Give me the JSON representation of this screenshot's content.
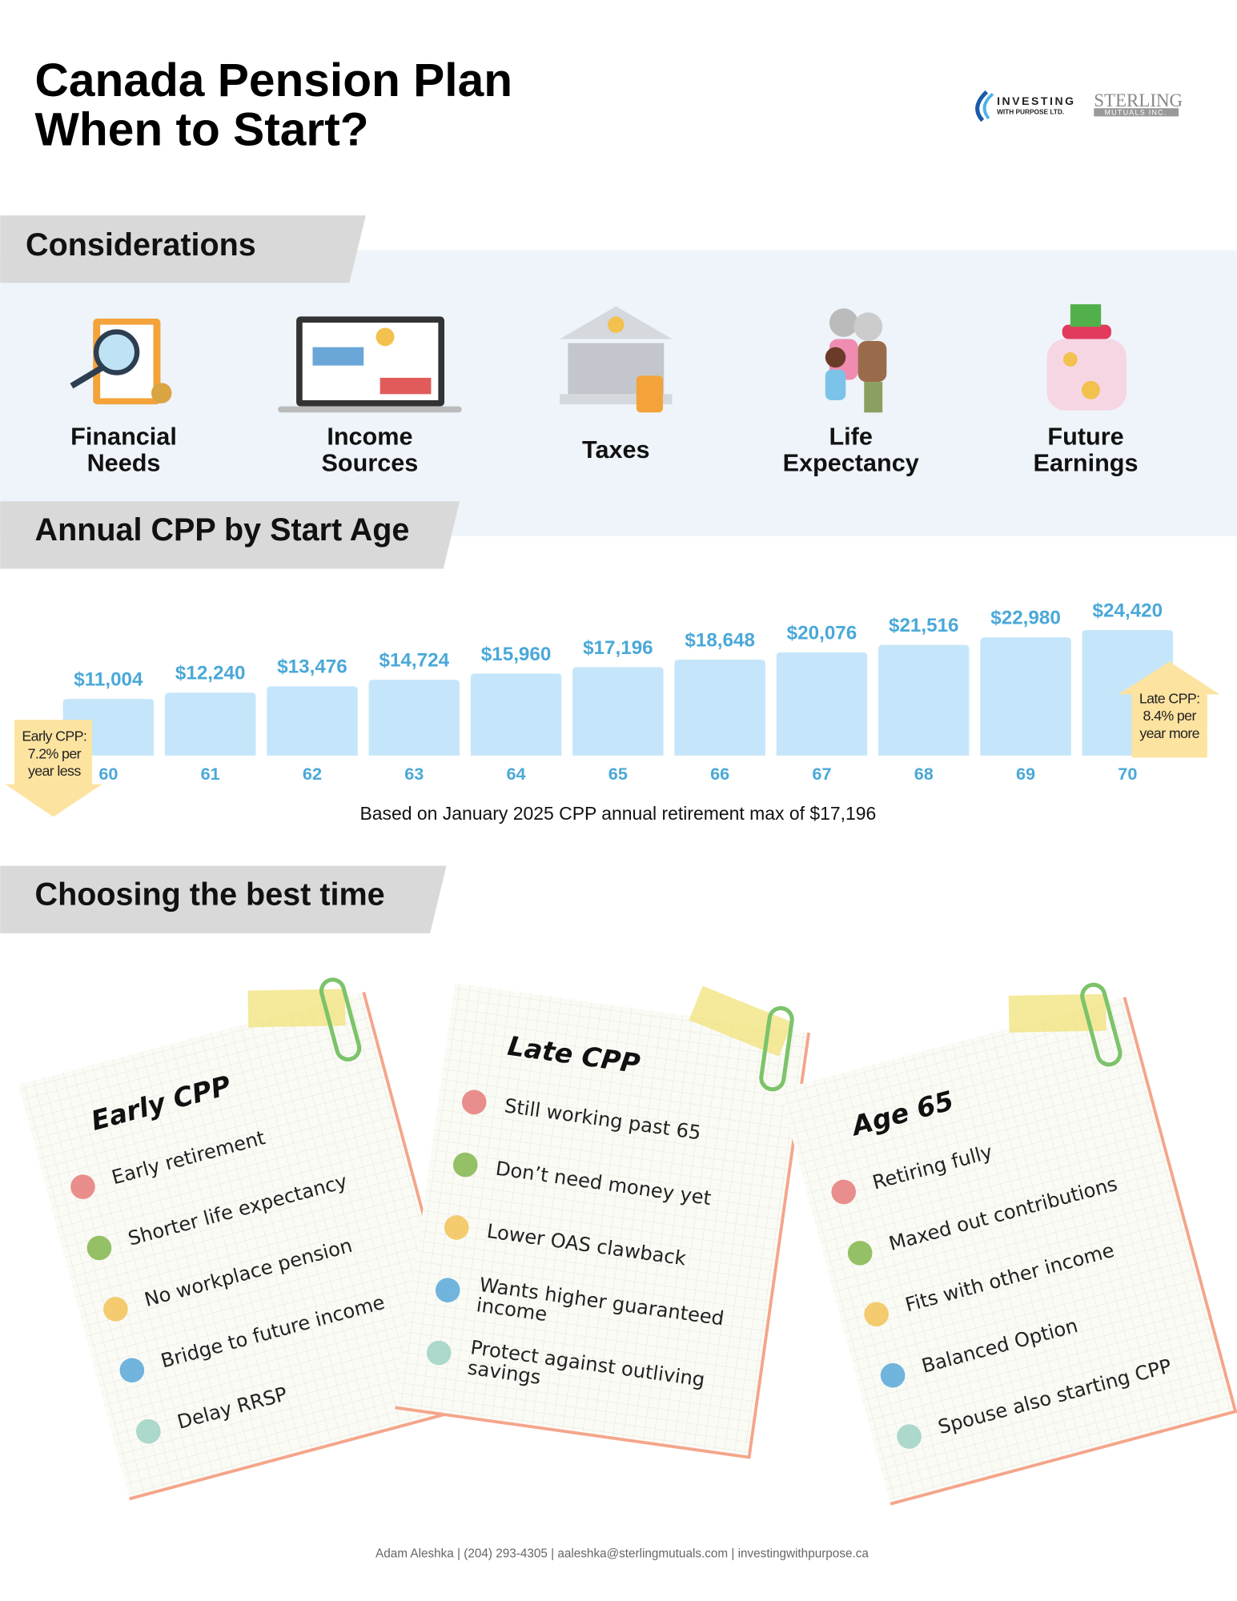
{
  "header": {
    "title_lines": [
      "Canada Pension Plan",
      "When to Start?"
    ],
    "logos": [
      "INVESTING",
      "WITH PURPOSE LTD.",
      "STERLING",
      "MUTUALS INC."
    ]
  },
  "sections": [
    "Considerations",
    "Annual CPP by Start Age",
    "Choosing the best time"
  ],
  "considerations": [
    [
      "Financial",
      "Needs"
    ],
    [
      "Income",
      "Sources"
    ],
    [
      "Taxes"
    ],
    [
      "Life",
      "Expectancy"
    ],
    [
      "Future",
      "Earnings"
    ]
  ],
  "chart_data": {
    "type": "bar",
    "categories": [
      "60",
      "61",
      "62",
      "63",
      "64",
      "65",
      "66",
      "67",
      "68",
      "69",
      "70"
    ],
    "values": [
      11004,
      12240,
      13476,
      14724,
      15960,
      17196,
      18648,
      20076,
      21516,
      22980,
      24420
    ],
    "value_labels": [
      "$11,004",
      "$12,240",
      "$13,476",
      "$14,724",
      "$15,960",
      "$17,196",
      "$18,648",
      "$20,076",
      "$21,516",
      "$22,980",
      "$24,420"
    ],
    "color": "#c5e6fa",
    "note": "Based on January 2025 CPP annual retirement max of $17,196",
    "annotations": [
      [
        "Early CPP:",
        "7.2% per",
        "year less"
      ],
      [
        "Late CPP:",
        "8.4% per",
        "year more"
      ]
    ]
  },
  "cards": [
    {
      "title": "Early CPP",
      "items": [
        [
          "Early retirement"
        ],
        [
          "Shorter life expectancy"
        ],
        [
          "No workplace pension"
        ],
        [
          "Bridge to future income"
        ],
        [
          "Delay RRSP"
        ]
      ]
    },
    {
      "title": "Age 65",
      "items": [
        [
          "Retiring fully"
        ],
        [
          "Maxed out contributions"
        ],
        [
          "Fits with other income"
        ],
        [
          "Balanced Option"
        ],
        [
          "Spouse also starting CPP"
        ]
      ]
    },
    {
      "title": "Late CPP",
      "items": [
        [
          "Still working past 65"
        ],
        [
          "Don’t need money yet"
        ],
        [
          "Lower OAS clawback"
        ],
        [
          "Wants higher guaranteed",
          "income"
        ],
        [
          "Protect against outliving",
          "savings"
        ]
      ]
    }
  ],
  "footer": "Adam Aleshka | (204) 293-4305 | aaleshka@sterlingmutuals.com | investingwithpurpose.ca"
}
